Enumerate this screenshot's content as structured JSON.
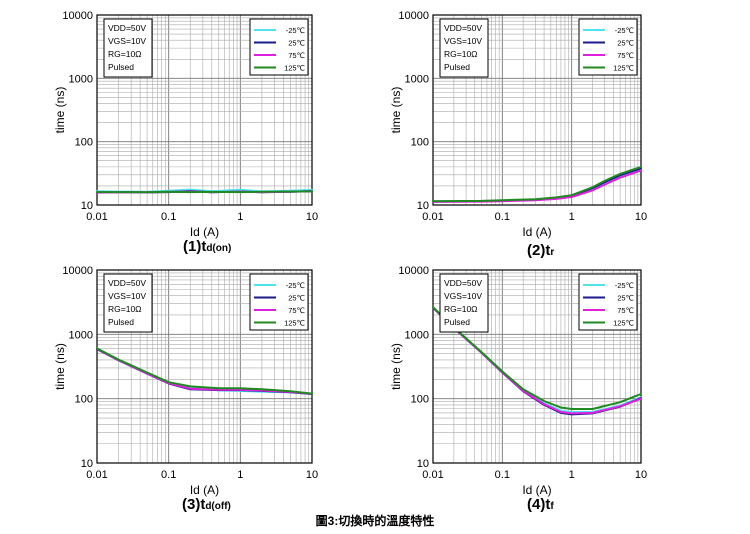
{
  "figure_caption": "圖3:切換時的溫度特性",
  "chart_data": [
    {
      "type": "line",
      "caption_main": "(1)t",
      "caption_sub": "d(on)",
      "xlabel": "Id (A)",
      "ylabel": "time (ns)",
      "x_scale": "log",
      "y_scale": "log",
      "xlim": [
        0.01,
        10
      ],
      "ylim": [
        10,
        10000
      ],
      "x_ticks": [
        "0.01",
        "0.1",
        "1",
        "10"
      ],
      "y_ticks": [
        "10",
        "100",
        "1000",
        "10000"
      ],
      "grid": true,
      "conditions": [
        "VDD=50V",
        "VGS=10V",
        "RG=10Ω",
        "Pulsed"
      ],
      "legend_position": "top-right",
      "series": [
        {
          "name": "-25℃",
          "color": "#4fe3ef",
          "points": [
            [
              0.01,
              16.5
            ],
            [
              0.02,
              16.3
            ],
            [
              0.05,
              16.2
            ],
            [
              0.1,
              16.8
            ],
            [
              0.2,
              17.5
            ],
            [
              0.4,
              16.5
            ],
            [
              1,
              17.4
            ],
            [
              2,
              16.4
            ],
            [
              5,
              16.8
            ],
            [
              10,
              17.3
            ]
          ]
        },
        {
          "name": "25℃",
          "color": "#1a1a8c",
          "points": [
            [
              0.01,
              15.8
            ],
            [
              0.02,
              15.9
            ],
            [
              0.05,
              15.8
            ],
            [
              0.1,
              16.0
            ],
            [
              0.2,
              16.6
            ],
            [
              0.4,
              15.9
            ],
            [
              1,
              16.3
            ],
            [
              2,
              15.9
            ],
            [
              5,
              16.2
            ],
            [
              10,
              16.6
            ]
          ]
        },
        {
          "name": "75℃",
          "color": "#e020e0",
          "points": [
            [
              0.01,
              15.7
            ],
            [
              0.02,
              15.8
            ],
            [
              0.05,
              15.9
            ],
            [
              0.1,
              16.1
            ],
            [
              0.2,
              16.3
            ],
            [
              0.4,
              16.0
            ],
            [
              1,
              16.2
            ],
            [
              2,
              16.0
            ],
            [
              5,
              16.2
            ],
            [
              10,
              16.5
            ]
          ]
        },
        {
          "name": "125℃",
          "color": "#1f8a1f",
          "points": [
            [
              0.01,
              16.0
            ],
            [
              0.02,
              16.0
            ],
            [
              0.05,
              15.9
            ],
            [
              0.1,
              16.2
            ],
            [
              0.2,
              16.0
            ],
            [
              0.4,
              16.1
            ],
            [
              1,
              16.0
            ],
            [
              2,
              16.2
            ],
            [
              5,
              16.3
            ],
            [
              10,
              16.4
            ]
          ]
        }
      ]
    },
    {
      "type": "line",
      "caption_main": "(2)t",
      "caption_sub": "r",
      "xlabel": "Id (A)",
      "ylabel": "time (ns)",
      "x_scale": "log",
      "y_scale": "log",
      "xlim": [
        0.01,
        10
      ],
      "ylim": [
        10,
        10000
      ],
      "x_ticks": [
        "0.01",
        "0.1",
        "1",
        "10"
      ],
      "y_ticks": [
        "10",
        "100",
        "1000",
        "10000"
      ],
      "grid": true,
      "conditions": [
        "VDD=50V",
        "VGS=10V",
        "RG=10Ω",
        "Pulsed"
      ],
      "legend_position": "top-right",
      "series": [
        {
          "name": "-25℃",
          "color": "#4fe3ef",
          "points": [
            [
              0.01,
              11.3
            ],
            [
              0.05,
              11.4
            ],
            [
              0.1,
              11.6
            ],
            [
              0.3,
              12.0
            ],
            [
              0.6,
              12.8
            ],
            [
              1,
              13.8
            ],
            [
              2,
              18
            ],
            [
              3,
              22.5
            ],
            [
              5,
              28.5
            ],
            [
              10,
              37
            ]
          ]
        },
        {
          "name": "25℃",
          "color": "#1a1a8c",
          "points": [
            [
              0.01,
              11.4
            ],
            [
              0.05,
              11.5
            ],
            [
              0.1,
              11.7
            ],
            [
              0.3,
              12.1
            ],
            [
              0.6,
              12.9
            ],
            [
              1,
              13.9
            ],
            [
              2,
              18.5
            ],
            [
              3,
              23
            ],
            [
              5,
              29.5
            ],
            [
              10,
              38
            ]
          ]
        },
        {
          "name": "75℃",
          "color": "#e020e0",
          "points": [
            [
              0.01,
              11.2
            ],
            [
              0.05,
              11.3
            ],
            [
              0.1,
              11.5
            ],
            [
              0.3,
              11.9
            ],
            [
              0.6,
              12.5
            ],
            [
              1,
              13.4
            ],
            [
              2,
              17
            ],
            [
              3,
              21
            ],
            [
              5,
              27
            ],
            [
              10,
              35
            ]
          ]
        },
        {
          "name": "125℃",
          "color": "#1f8a1f",
          "points": [
            [
              0.01,
              11.5
            ],
            [
              0.05,
              11.6
            ],
            [
              0.1,
              11.9
            ],
            [
              0.3,
              12.3
            ],
            [
              0.6,
              13.2
            ],
            [
              1,
              14.3
            ],
            [
              2,
              19
            ],
            [
              3,
              24
            ],
            [
              5,
              31
            ],
            [
              10,
              40
            ]
          ]
        }
      ]
    },
    {
      "type": "line",
      "caption_main": "(3)t",
      "caption_sub": "d(off)",
      "xlabel": "Id (A)",
      "ylabel": "time (ns)",
      "x_scale": "log",
      "y_scale": "log",
      "xlim": [
        0.01,
        10
      ],
      "ylim": [
        10,
        10000
      ],
      "x_ticks": [
        "0.01",
        "0.1",
        "1",
        "10"
      ],
      "y_ticks": [
        "10",
        "100",
        "1000",
        "10000"
      ],
      "grid": true,
      "conditions": [
        "VDD=50V",
        "VGS=10V",
        "RG=10Ω",
        "Pulsed"
      ],
      "legend_position": "top-right",
      "series": [
        {
          "name": "-25℃",
          "color": "#4fe3ef",
          "points": [
            [
              0.01,
              600
            ],
            [
              0.02,
              400
            ],
            [
              0.05,
              250
            ],
            [
              0.1,
              175
            ],
            [
              0.2,
              145
            ],
            [
              0.5,
              135
            ],
            [
              1,
              132
            ],
            [
              2,
              128
            ],
            [
              5,
              125
            ],
            [
              10,
              118
            ]
          ]
        },
        {
          "name": "25℃",
          "color": "#1a1a8c",
          "points": [
            [
              0.01,
              590
            ],
            [
              0.02,
              395
            ],
            [
              0.05,
              245
            ],
            [
              0.1,
              172
            ],
            [
              0.2,
              140
            ],
            [
              0.5,
              136
            ],
            [
              1,
              136
            ],
            [
              2,
              132
            ],
            [
              5,
              126
            ],
            [
              10,
              118
            ]
          ]
        },
        {
          "name": "75℃",
          "color": "#e020e0",
          "points": [
            [
              0.01,
              595
            ],
            [
              0.02,
              398
            ],
            [
              0.05,
              248
            ],
            [
              0.1,
              174
            ],
            [
              0.2,
              143
            ],
            [
              0.5,
              138
            ],
            [
              1,
              138
            ],
            [
              2,
              134
            ],
            [
              5,
              127
            ],
            [
              10,
              119
            ]
          ]
        },
        {
          "name": "125℃",
          "color": "#1f8a1f",
          "points": [
            [
              0.01,
              605
            ],
            [
              0.02,
              405
            ],
            [
              0.05,
              255
            ],
            [
              0.1,
              180
            ],
            [
              0.2,
              155
            ],
            [
              0.5,
              145
            ],
            [
              1,
              145
            ],
            [
              2,
              140
            ],
            [
              5,
              130
            ],
            [
              10,
              120
            ]
          ]
        }
      ]
    },
    {
      "type": "line",
      "caption_main": "(4)t",
      "caption_sub": "f",
      "xlabel": "Id (A)",
      "ylabel": "time (ns)",
      "x_scale": "log",
      "y_scale": "log",
      "xlim": [
        0.01,
        10
      ],
      "ylim": [
        10,
        10000
      ],
      "x_ticks": [
        "0.01",
        "0.1",
        "1",
        "10"
      ],
      "y_ticks": [
        "10",
        "100",
        "1000",
        "10000"
      ],
      "grid": true,
      "conditions": [
        "VDD=50V",
        "VGS=10V",
        "RG=10Ω",
        "Pulsed"
      ],
      "legend_position": "top-right",
      "series": [
        {
          "name": "-25℃",
          "color": "#4fe3ef",
          "points": [
            [
              0.01,
              2600
            ],
            [
              0.02,
              1250
            ],
            [
              0.05,
              520
            ],
            [
              0.1,
              260
            ],
            [
              0.2,
              135
            ],
            [
              0.4,
              85
            ],
            [
              0.7,
              65
            ],
            [
              1,
              62
            ],
            [
              2,
              62
            ],
            [
              5,
              78
            ],
            [
              10,
              105
            ]
          ]
        },
        {
          "name": "25℃",
          "color": "#1a1a8c",
          "points": [
            [
              0.01,
              2600
            ],
            [
              0.02,
              1250
            ],
            [
              0.05,
              520
            ],
            [
              0.1,
              255
            ],
            [
              0.2,
              130
            ],
            [
              0.4,
              80
            ],
            [
              0.7,
              60
            ],
            [
              1,
              57
            ],
            [
              2,
              59
            ],
            [
              5,
              75
            ],
            [
              10,
              102
            ]
          ]
        },
        {
          "name": "75℃",
          "color": "#e020e0",
          "points": [
            [
              0.01,
              2600
            ],
            [
              0.02,
              1250
            ],
            [
              0.05,
              520
            ],
            [
              0.1,
              258
            ],
            [
              0.2,
              132
            ],
            [
              0.4,
              82
            ],
            [
              0.7,
              62
            ],
            [
              1,
              59
            ],
            [
              2,
              60
            ],
            [
              5,
              76
            ],
            [
              10,
              100
            ]
          ]
        },
        {
          "name": "125℃",
          "color": "#1f8a1f",
          "points": [
            [
              0.01,
              2650
            ],
            [
              0.02,
              1280
            ],
            [
              0.05,
              530
            ],
            [
              0.1,
              265
            ],
            [
              0.2,
              140
            ],
            [
              0.4,
              92
            ],
            [
              0.7,
              73
            ],
            [
              1,
              69
            ],
            [
              2,
              69
            ],
            [
              5,
              88
            ],
            [
              10,
              118
            ]
          ]
        }
      ]
    }
  ]
}
